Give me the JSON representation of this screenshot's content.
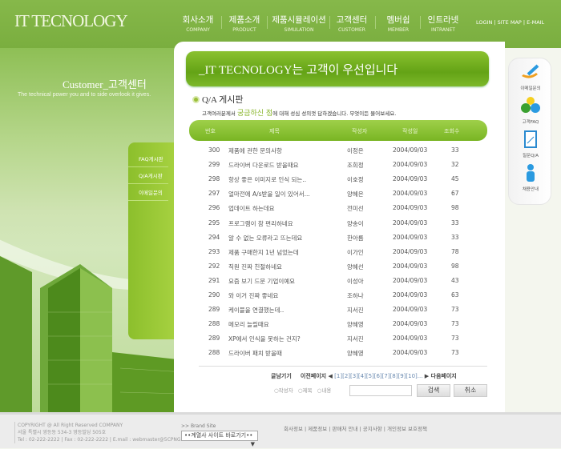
{
  "header": {
    "logo": "IT TECNOLOGY",
    "nav": [
      {
        "ko": "회사소개",
        "en": "COMPANY"
      },
      {
        "ko": "제품소개",
        "en": "PRODUCT"
      },
      {
        "ko": "제품시뮬레이션",
        "en": "SIMULATION"
      },
      {
        "ko": "고객센터",
        "en": "CUSTOMER"
      },
      {
        "ko": "멤버쉽",
        "en": "MEMBER"
      },
      {
        "ko": "인트라넷",
        "en": "INTRANET"
      }
    ],
    "util": "LOGIN  |  SITE MAP  |  E-MAIL"
  },
  "left": {
    "title": "Customer_고객센터",
    "subtitle": "The technical power you and to side overlook it gives.",
    "menu": [
      "FAQ게시판",
      "Q/A게시판",
      "이메일문의"
    ]
  },
  "main": {
    "banner": "_IT TECNOLOGY는 고객이 우선입니다",
    "section": "Q/A 게시판",
    "desc_pre": "고객여러분께서 ",
    "desc_hl": "궁금하신 점",
    "desc_post": "에 대해 성심 성의껏 답하겠습니다. 무엇이든 물어보세요.",
    "columns": [
      "번호",
      "제목",
      "작성자",
      "작성일",
      "조회수"
    ],
    "rows": [
      [
        "300",
        "제품에 관한 문의사항",
        "이정은",
        "2004/09/03",
        "33"
      ],
      [
        "299",
        "드라이버 다운로드 받을때요",
        "조희정",
        "2004/09/03",
        "32"
      ],
      [
        "298",
        "항상 좋은 이미지로 인식 되는..",
        "이호정",
        "2004/09/03",
        "45"
      ],
      [
        "297",
        "얼마전에 A/s받을 일이 있어서...",
        "양혜은",
        "2004/09/03",
        "67"
      ],
      [
        "296",
        "업데이트 하는데요",
        "전미선",
        "2004/09/03",
        "98"
      ],
      [
        "295",
        "프로그램이 참 편리하네요",
        "양송이",
        "2004/09/03",
        "33"
      ],
      [
        "294",
        "알 수 없는 오류라고 뜨는데요",
        "한아름",
        "2004/09/03",
        "33"
      ],
      [
        "293",
        "제품 구매한지 1년 넘었는데",
        "이가인",
        "2004/09/03",
        "78"
      ],
      [
        "292",
        "직원 진짜 친절하네요",
        "양혜선",
        "2004/09/03",
        "98"
      ],
      [
        "291",
        "요즘 보기 드문 기업이예요",
        "이성아",
        "2004/09/03",
        "43"
      ],
      [
        "290",
        "와 이거 진짜 좋네요",
        "조하나",
        "2004/09/03",
        "63"
      ],
      [
        "289",
        "케이블을 연결했는데..",
        "지서진",
        "2004/09/03",
        "73"
      ],
      [
        "288",
        "메모리 늘릴때요",
        "양혜영",
        "2004/09/03",
        "73"
      ],
      [
        "289",
        "XP에서 인식을 못하는 건지?",
        "지서진",
        "2004/09/03",
        "73"
      ],
      [
        "288",
        "드라이버 패치 받을때",
        "양혜영",
        "2004/09/03",
        "73"
      ]
    ],
    "pager": {
      "write": "글남기기",
      "prev": "이전페이지 ◀",
      "pages": "[1][2][3][4][5][6][7][8][9][10]...",
      "next": "▶ 다음페이지"
    },
    "search": {
      "options": [
        "작성자",
        "제목",
        "내용"
      ],
      "value": "",
      "search_btn": "검색",
      "cancel_btn": "취소"
    }
  },
  "right": [
    "이메일문의",
    "고객FAQ",
    "질문Q/A",
    "채용안내"
  ],
  "footer": {
    "copy1": "COPYRIGHT @ All Right Reserved COMPANY",
    "copy2": "서울 특별시 영등동 534-3 영등빌딩 505호",
    "copy3": "Tel : 02-222-2222  |  Fax : 02-222-2222  |  E.mail : webmaster@5CPNG.com",
    "brand_label": ">> Brand Site",
    "brand_select": "••계열사 사이트 바로가기••",
    "links": "회사정보  |  제품정보  |  판매처 안내  |  공지사항  |  개인정보 보호정책"
  },
  "colors": {
    "accent": "#7ab52a",
    "header": "#82b446"
  }
}
